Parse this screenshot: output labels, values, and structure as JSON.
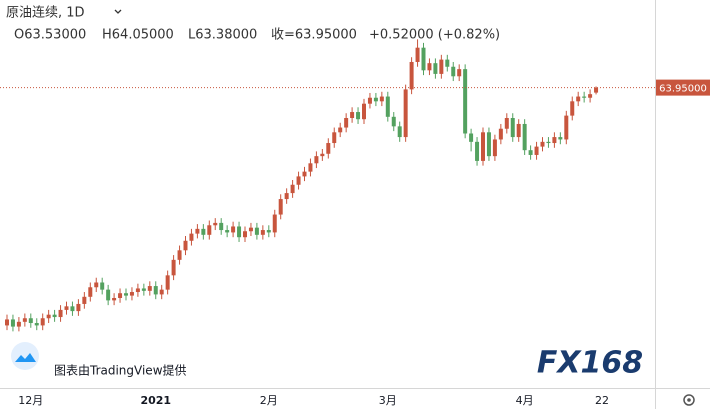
{
  "chart_data": {
    "type": "candlestick",
    "header": {
      "symbol": "原油连续, 1D",
      "open": "O63.53000",
      "high": "H64.05000",
      "low": "L63.38000",
      "close": "收=63.95000",
      "change": "+0.52000 (+0.82%)"
    },
    "watermark": "图表由TradingView提供",
    "logo": "FX168",
    "categories": [
      null,
      null,
      null,
      null,
      "12月",
      null,
      null,
      null,
      null,
      null,
      null,
      null,
      null,
      null,
      null,
      null,
      null,
      null,
      null,
      null,
      null,
      null,
      null,
      null,
      null,
      "2021",
      null,
      null,
      null,
      null,
      null,
      null,
      null,
      null,
      null,
      null,
      null,
      null,
      null,
      null,
      null,
      null,
      null,
      null,
      "2月",
      null,
      null,
      null,
      null,
      null,
      null,
      null,
      null,
      null,
      null,
      null,
      null,
      null,
      null,
      null,
      null,
      null,
      null,
      null,
      "3月",
      null,
      null,
      null,
      null,
      null,
      null,
      null,
      null,
      null,
      null,
      null,
      null,
      null,
      null,
      null,
      null,
      null,
      null,
      null,
      null,
      null,
      null,
      "4月",
      null,
      null,
      null,
      null,
      null,
      null,
      null,
      null,
      null,
      null,
      null,
      null,
      "22"
    ],
    "open": [
      44.0,
      44.5,
      43.9,
      44.3,
      44.6,
      44.2,
      44.0,
      44.6,
      44.9,
      44.7,
      45.3,
      45.6,
      45.2,
      45.8,
      46.4,
      47.2,
      47.6,
      47.0,
      46.1,
      46.3,
      46.7,
      46.5,
      46.8,
      47.1,
      46.9,
      47.3,
      46.6,
      47.0,
      48.2,
      49.5,
      50.3,
      51.1,
      51.7,
      52.1,
      51.6,
      52.4,
      52.6,
      52.0,
      51.8,
      52.3,
      51.4,
      51.9,
      52.2,
      51.6,
      52.0,
      51.8,
      53.3,
      54.6,
      55.1,
      55.8,
      56.5,
      56.9,
      57.6,
      58.2,
      58.4,
      59.3,
      60.2,
      60.6,
      61.4,
      61.9,
      61.3,
      62.6,
      63.1,
      62.8,
      63.2,
      61.5,
      60.7,
      59.8,
      63.8,
      66.1,
      67.3,
      65.4,
      66.0,
      65.1,
      66.3,
      65.7,
      64.9,
      65.5,
      60.1,
      59.4,
      57.8,
      60.2,
      58.2,
      59.6,
      60.5,
      61.4,
      59.8,
      60.9,
      58.7,
      58.3,
      59.0,
      59.4,
      59.3,
      59.8,
      59.6,
      61.6,
      62.8,
      63.2,
      63.1,
      63.53,
      null
    ],
    "high": [
      44.9,
      44.9,
      44.7,
      45.0,
      45.0,
      44.6,
      45.0,
      45.3,
      45.3,
      45.7,
      46.0,
      46.0,
      46.2,
      46.8,
      47.6,
      48.0,
      48.0,
      47.4,
      46.7,
      47.1,
      47.1,
      47.2,
      47.5,
      47.5,
      47.7,
      47.7,
      47.4,
      48.6,
      49.9,
      50.7,
      51.5,
      52.1,
      52.5,
      52.5,
      52.8,
      53.0,
      53.0,
      52.4,
      52.7,
      52.7,
      52.3,
      52.6,
      52.6,
      52.4,
      52.4,
      53.7,
      55.0,
      55.5,
      56.2,
      56.9,
      57.3,
      58.0,
      58.6,
      58.8,
      59.7,
      60.6,
      61.0,
      61.8,
      62.3,
      62.3,
      63.0,
      63.5,
      63.5,
      63.6,
      63.6,
      61.9,
      61.1,
      64.2,
      66.5,
      68.0,
      67.7,
      66.4,
      66.4,
      66.7,
      66.7,
      66.1,
      65.9,
      65.9,
      60.5,
      59.8,
      60.6,
      60.6,
      60.0,
      60.9,
      61.8,
      61.8,
      61.3,
      61.3,
      59.1,
      59.4,
      59.8,
      59.8,
      60.2,
      60.2,
      62.0,
      63.2,
      63.6,
      63.6,
      63.8,
      64.05,
      null
    ],
    "low": [
      43.6,
      43.5,
      43.5,
      43.9,
      43.8,
      43.6,
      43.6,
      44.2,
      44.3,
      44.3,
      44.9,
      44.8,
      44.8,
      45.4,
      46.0,
      46.8,
      46.6,
      45.7,
      45.7,
      45.9,
      46.1,
      46.1,
      46.4,
      46.5,
      46.5,
      46.2,
      46.2,
      46.6,
      47.8,
      49.1,
      49.9,
      50.7,
      51.3,
      51.2,
      51.2,
      52.0,
      51.6,
      51.4,
      51.4,
      51.0,
      51.0,
      51.5,
      51.2,
      51.2,
      51.4,
      51.4,
      52.9,
      54.2,
      54.7,
      55.4,
      56.1,
      56.5,
      57.2,
      57.8,
      58.0,
      58.9,
      59.8,
      60.2,
      61.0,
      60.9,
      60.9,
      62.2,
      62.4,
      62.4,
      61.1,
      60.3,
      59.4,
      59.4,
      63.4,
      65.7,
      65.0,
      65.0,
      64.7,
      64.7,
      65.3,
      64.5,
      64.5,
      59.7,
      58.6,
      57.4,
      57.4,
      57.8,
      57.8,
      59.2,
      60.1,
      59.4,
      59.4,
      58.3,
      57.9,
      57.9,
      58.6,
      58.9,
      58.9,
      59.2,
      59.2,
      61.2,
      62.4,
      62.7,
      62.7,
      63.38,
      null
    ],
    "close": [
      44.5,
      43.9,
      44.3,
      44.6,
      44.2,
      44.0,
      44.6,
      44.9,
      44.7,
      45.3,
      45.6,
      45.2,
      45.8,
      46.4,
      47.2,
      47.6,
      47.0,
      46.1,
      46.3,
      46.7,
      46.5,
      46.8,
      47.1,
      46.9,
      47.3,
      46.6,
      47.0,
      48.2,
      49.5,
      50.3,
      51.1,
      51.7,
      52.1,
      51.6,
      52.4,
      52.6,
      52.0,
      51.8,
      52.3,
      51.4,
      51.9,
      52.2,
      51.6,
      52.0,
      51.8,
      53.3,
      54.6,
      55.1,
      55.8,
      56.5,
      56.9,
      57.6,
      58.2,
      58.4,
      59.3,
      60.2,
      60.6,
      61.4,
      61.9,
      61.3,
      62.6,
      63.1,
      62.8,
      63.2,
      61.5,
      60.7,
      59.8,
      63.8,
      66.1,
      67.3,
      65.4,
      66.0,
      65.1,
      66.3,
      65.7,
      64.9,
      65.5,
      60.1,
      59.4,
      57.8,
      60.2,
      58.2,
      59.6,
      60.5,
      61.4,
      59.8,
      60.9,
      58.7,
      58.3,
      59.0,
      59.4,
      59.3,
      59.8,
      59.6,
      61.6,
      62.8,
      63.2,
      63.1,
      63.4,
      63.95,
      null
    ],
    "up_color": "#c8553d",
    "down_color": "#53a15f",
    "last_price": {
      "value": 63.95,
      "label": "63.95000",
      "color": "#c8553d"
    },
    "ylim": [
      39,
      71.3
    ]
  }
}
